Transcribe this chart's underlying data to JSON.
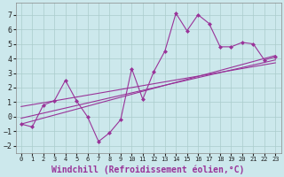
{
  "xlabel": "Windchill (Refroidissement éolien,°C)",
  "bg_color": "#cce8ec",
  "grid_color": "#aacccc",
  "line_color": "#993399",
  "xlim": [
    -0.5,
    23.5
  ],
  "ylim": [
    -2.5,
    7.8
  ],
  "xticks": [
    0,
    1,
    2,
    3,
    4,
    5,
    6,
    7,
    8,
    9,
    10,
    11,
    12,
    13,
    14,
    15,
    16,
    17,
    18,
    19,
    20,
    21,
    22,
    23
  ],
  "yticks": [
    -2,
    -1,
    0,
    1,
    2,
    3,
    4,
    5,
    6,
    7
  ],
  "series_main": {
    "x": [
      0,
      1,
      2,
      3,
      4,
      5,
      6,
      7,
      8,
      9,
      10,
      11,
      12,
      13,
      14,
      15,
      16,
      17,
      18,
      19,
      20,
      21,
      22,
      23
    ],
    "y": [
      -0.5,
      -0.7,
      0.8,
      1.1,
      2.5,
      1.1,
      0.0,
      -1.7,
      -1.1,
      -0.2,
      3.3,
      1.2,
      3.1,
      4.5,
      7.1,
      5.9,
      7.0,
      6.4,
      4.8,
      4.8,
      5.1,
      5.0,
      3.9,
      4.1
    ]
  },
  "trend_lines": [
    {
      "x": [
        0,
        23
      ],
      "y": [
        -0.5,
        4.2
      ]
    },
    {
      "x": [
        0,
        23
      ],
      "y": [
        -0.1,
        3.9
      ]
    },
    {
      "x": [
        0,
        23
      ],
      "y": [
        0.7,
        3.7
      ]
    }
  ],
  "xlabel_color": "#993399",
  "xlabel_fontsize": 7,
  "tick_fontsize": 6.5,
  "spine_color": "#888888"
}
